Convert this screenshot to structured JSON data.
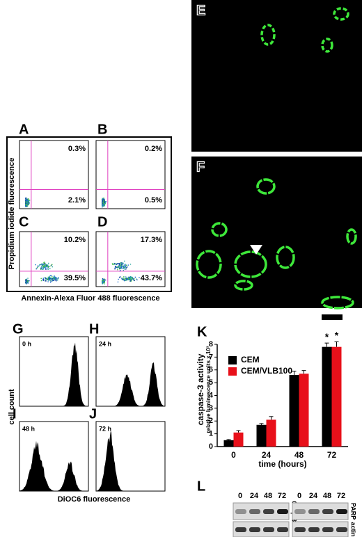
{
  "chart_data": {
    "type": "bar",
    "label": "K",
    "title": "caspase-3 activity",
    "subtitle": "relative luminescence units x 10³",
    "x_label": "time (hours)",
    "categories": [
      "0",
      "24",
      "48",
      "72"
    ],
    "series": [
      {
        "name": "CEM",
        "color": "#000000",
        "values": [
          0.5,
          1.7,
          5.6,
          7.8
        ],
        "errors": [
          0.05,
          0.1,
          0.3,
          0.3
        ]
      },
      {
        "name": "CEM/VLB100",
        "color": "#e8101a",
        "values": [
          1.1,
          2.1,
          5.7,
          7.8
        ],
        "errors": [
          0.15,
          0.25,
          0.25,
          0.4
        ]
      }
    ],
    "ylim": [
      0,
      8
    ],
    "yticks": [
      0,
      1,
      2,
      3,
      4,
      5,
      6,
      7,
      8
    ],
    "annotations": [
      "*",
      "*"
    ],
    "legend": "upper-left"
  },
  "flow": {
    "panels": [
      {
        "label": "A",
        "upper_right": "0.3%",
        "lower_right": "2.1%"
      },
      {
        "label": "B",
        "upper_right": "0.2%",
        "lower_right": "0.5%"
      },
      {
        "label": "C",
        "upper_right": "10.2%",
        "lower_right": "39.5%"
      },
      {
        "label": "D",
        "upper_right": "17.3%",
        "lower_right": "43.7%"
      }
    ],
    "y_label": "Propidium iodide fluorescence",
    "x_label": "Annexin-Alexa Fluor 488 fluorescence"
  },
  "microscopy": [
    {
      "label": "E"
    },
    {
      "label": "F"
    }
  ],
  "histograms": {
    "panels": [
      {
        "label": "G",
        "time": "0 h"
      },
      {
        "label": "H",
        "time": "24 h"
      },
      {
        "label": "I",
        "time": "48 h"
      },
      {
        "label": "J",
        "time": "72 h"
      }
    ],
    "y_label": "cell count",
    "x_label": "DiOC6 fluorescence"
  },
  "blot": {
    "label": "L",
    "lanes": [
      "0",
      "24",
      "48",
      "72"
    ],
    "left": {
      "top": "Casp-3",
      "bottom": "actin"
    },
    "right": {
      "top": "PARP",
      "bottom": "actin"
    }
  }
}
